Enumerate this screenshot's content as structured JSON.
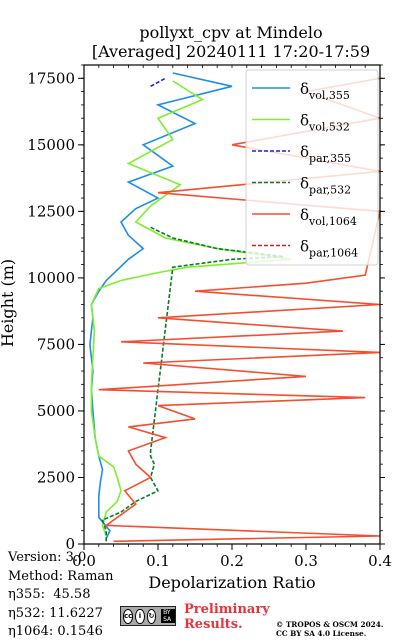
{
  "chart_data": {
    "type": "line",
    "title": "pollyxt_cpv at Mindelo",
    "subtitle": "[Averaged] 20240111 17:20-17:59",
    "xlabel": "Depolarization Ratio",
    "ylabel": "Height (m)",
    "xlim": [
      0.0,
      0.4
    ],
    "ylim": [
      0,
      18000
    ],
    "xticks": [
      "0.0",
      "0.1",
      "0.2",
      "0.3",
      "0.4"
    ],
    "yticks": [
      "0",
      "2500",
      "5000",
      "7500",
      "10000",
      "12500",
      "15000",
      "17500"
    ],
    "grid": true,
    "legend_position": "top-right",
    "series": [
      {
        "name": "δ_vol,355",
        "color": "#1e8de8",
        "style": "solid",
        "points": [
          [
            0.03,
            200
          ],
          [
            0.035,
            500
          ],
          [
            0.02,
            1000
          ],
          [
            0.02,
            1800
          ],
          [
            0.022,
            2300
          ],
          [
            0.025,
            2800
          ],
          [
            0.02,
            3300
          ],
          [
            0.015,
            4000
          ],
          [
            0.012,
            5000
          ],
          [
            0.01,
            5800
          ],
          [
            0.012,
            6500
          ],
          [
            0.008,
            7500
          ],
          [
            0.012,
            8500
          ],
          [
            0.01,
            9000
          ],
          [
            0.02,
            9500
          ],
          [
            0.03,
            9900
          ],
          [
            0.045,
            10300
          ],
          [
            0.06,
            10700
          ],
          [
            0.08,
            11100
          ],
          [
            0.06,
            11600
          ],
          [
            0.05,
            12100
          ],
          [
            0.07,
            12600
          ],
          [
            0.1,
            13000
          ],
          [
            0.06,
            13600
          ],
          [
            0.12,
            14200
          ],
          [
            0.08,
            15000
          ],
          [
            0.15,
            15800
          ],
          [
            0.1,
            16500
          ],
          [
            0.2,
            17200
          ],
          [
            0.12,
            17700
          ]
        ]
      },
      {
        "name": "δ_vol,532",
        "color": "#7cf02a",
        "style": "solid",
        "points": [
          [
            0.03,
            300
          ],
          [
            0.025,
            700
          ],
          [
            0.03,
            1200
          ],
          [
            0.045,
            1600
          ],
          [
            0.05,
            2000
          ],
          [
            0.045,
            2500
          ],
          [
            0.04,
            2900
          ],
          [
            0.02,
            3300
          ],
          [
            0.015,
            4000
          ],
          [
            0.01,
            5000
          ],
          [
            0.01,
            6000
          ],
          [
            0.012,
            7000
          ],
          [
            0.014,
            8000
          ],
          [
            0.01,
            9000
          ],
          [
            0.02,
            9600
          ],
          [
            0.05,
            9900
          ],
          [
            0.1,
            10200
          ],
          [
            0.14,
            10400
          ],
          [
            0.28,
            10700
          ],
          [
            0.18,
            11100
          ],
          [
            0.11,
            11500
          ],
          [
            0.07,
            12100
          ],
          [
            0.09,
            12700
          ],
          [
            0.13,
            13500
          ],
          [
            0.06,
            14300
          ],
          [
            0.12,
            15200
          ],
          [
            0.1,
            16000
          ],
          [
            0.16,
            16700
          ],
          [
            0.12,
            17400
          ]
        ]
      },
      {
        "name": "δ_par,355",
        "color": "#1f1fe0",
        "style": "dashed",
        "points": [
          [
            0.09,
            17200
          ],
          [
            0.11,
            17500
          ]
        ]
      },
      {
        "name": "δ_par,532",
        "color": "#0a7a2a",
        "style": "dashed",
        "points": [
          [
            0.03,
            100
          ],
          [
            0.03,
            500
          ],
          [
            0.025,
            900
          ],
          [
            0.05,
            1200
          ],
          [
            0.07,
            1600
          ],
          [
            0.1,
            2000
          ],
          [
            0.09,
            2500
          ],
          [
            0.095,
            3000
          ],
          [
            0.09,
            3300
          ],
          [
            0.09,
            3500
          ],
          [
            0.12,
            10400
          ],
          [
            0.2,
            10700
          ],
          [
            0.27,
            10800
          ],
          [
            0.18,
            11100
          ],
          [
            0.12,
            11500
          ],
          [
            0.09,
            11900
          ]
        ]
      },
      {
        "name": "δ_vol,1064",
        "color": "#f54e2e",
        "style": "solid",
        "points": [
          [
            0.04,
            100
          ],
          [
            0.4,
            300
          ],
          [
            0.03,
            700
          ],
          [
            0.07,
            1500
          ],
          [
            0.055,
            2000
          ],
          [
            0.09,
            2500
          ],
          [
            0.07,
            3000
          ],
          [
            0.06,
            3500
          ],
          [
            0.11,
            4000
          ],
          [
            0.06,
            4400
          ],
          [
            0.15,
            4700
          ],
          [
            0.1,
            5200
          ],
          [
            0.38,
            5500
          ],
          [
            0.02,
            5800
          ],
          [
            0.3,
            6300
          ],
          [
            0.08,
            6800
          ],
          [
            0.4,
            7200
          ],
          [
            0.05,
            7600
          ],
          [
            0.35,
            8000
          ],
          [
            0.1,
            8500
          ],
          [
            0.4,
            9000
          ],
          [
            0.15,
            9500
          ],
          [
            0.3,
            9800
          ],
          [
            0.38,
            10100
          ],
          [
            0.4,
            12500
          ],
          [
            0.1,
            13200
          ],
          [
            0.4,
            14000
          ],
          [
            0.2,
            15000
          ],
          [
            0.4,
            16000
          ],
          [
            0.3,
            17000
          ],
          [
            0.4,
            17500
          ]
        ]
      },
      {
        "name": "δ_par,1064",
        "color": "#d62020",
        "style": "dashed",
        "points": []
      }
    ]
  },
  "info": {
    "version": "Version: 3.0",
    "method": "Method: Raman",
    "eta355": "η355:  45.58",
    "eta532": "η532: 11.6227",
    "eta1064": "η1064: 0.1546"
  },
  "license": {
    "badge_cc": "cc",
    "badge_by": "BY SA",
    "preliminary": "Preliminary\nResults.",
    "copyright": "© TROPOS & OSCM 2024.\nCC BY SA 4.0 License."
  }
}
